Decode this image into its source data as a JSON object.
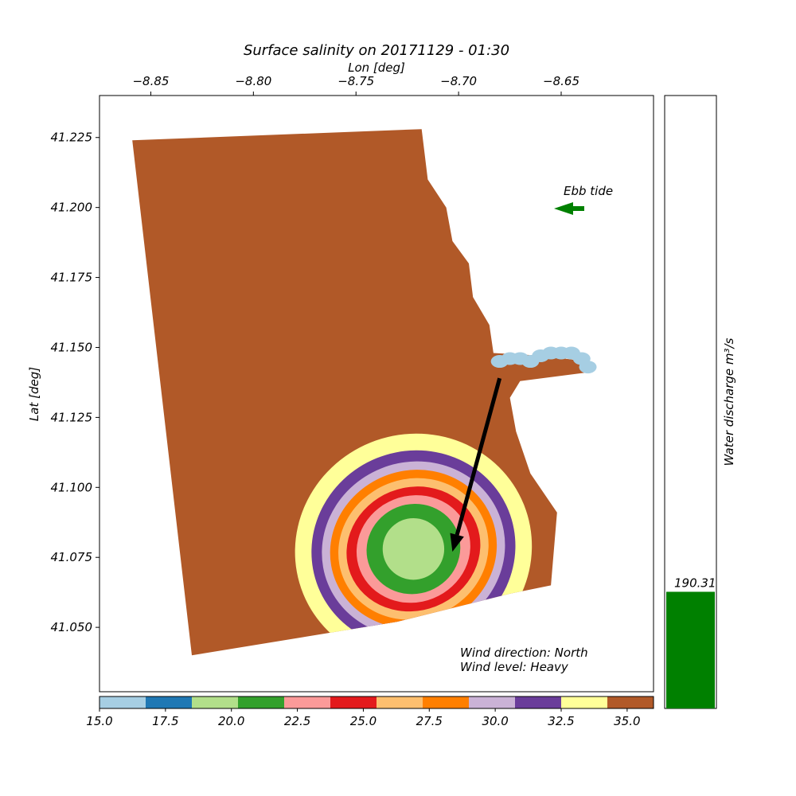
{
  "chart_data": [
    {
      "type": "heatmap",
      "title": "Surface salinity on 20171129 - 01:30",
      "xlabel": "Lon [deg]",
      "ylabel": "Lat [deg]",
      "xlim": [
        -8.875,
        -8.605
      ],
      "ylim": [
        41.027,
        41.24
      ],
      "x_ticks": [
        -8.85,
        -8.8,
        -8.75,
        -8.7,
        -8.65
      ],
      "x_tick_labels": [
        "−8.85",
        "−8.80",
        "−8.75",
        "−8.70",
        "−8.65"
      ],
      "y_ticks": [
        41.05,
        41.075,
        41.1,
        41.125,
        41.15,
        41.175,
        41.2,
        41.225
      ],
      "y_tick_labels": [
        "41.050",
        "41.075",
        "41.100",
        "41.125",
        "41.150",
        "41.175",
        "41.200",
        "41.225"
      ],
      "grid": false,
      "x_axis_position": "top",
      "domain_outline": [
        [
          -8.859,
          41.224
        ],
        [
          -8.718,
          41.228
        ],
        [
          -8.715,
          41.21
        ],
        [
          -8.706,
          41.2
        ],
        [
          -8.703,
          41.188
        ],
        [
          -8.695,
          41.18
        ],
        [
          -8.693,
          41.168
        ],
        [
          -8.685,
          41.158
        ],
        [
          -8.683,
          41.148
        ],
        [
          -8.658,
          41.147
        ],
        [
          -8.638,
          41.145
        ],
        [
          -8.638,
          41.141
        ],
        [
          -8.67,
          41.138
        ],
        [
          -8.675,
          41.132
        ],
        [
          -8.672,
          41.12
        ],
        [
          -8.665,
          41.105
        ],
        [
          -8.652,
          41.091
        ],
        [
          -8.655,
          41.065
        ],
        [
          -8.675,
          41.062
        ],
        [
          -8.73,
          41.052
        ],
        [
          -8.83,
          41.04
        ]
      ],
      "plume_center": [
        -8.722,
        41.078
      ],
      "plume_contours": [
        {
          "value_range": [
            32.5,
            34.25
          ],
          "color": "#ffff99",
          "rx": 0.058,
          "ry": 0.041
        },
        {
          "value_range": [
            30.75,
            32.5
          ],
          "color": "#6a3d9a",
          "rx": 0.05,
          "ry": 0.035
        },
        {
          "value_range": [
            29.0,
            30.75
          ],
          "color": "#cab2d6",
          "rx": 0.045,
          "ry": 0.031
        },
        {
          "value_range": [
            27.25,
            29.0
          ],
          "color": "#ff7f00",
          "rx": 0.041,
          "ry": 0.028
        },
        {
          "value_range": [
            25.5,
            27.25
          ],
          "color": "#fdbf6f",
          "rx": 0.037,
          "ry": 0.025
        },
        {
          "value_range": [
            23.75,
            25.5
          ],
          "color": "#e31a1c",
          "rx": 0.033,
          "ry": 0.022
        },
        {
          "value_range": [
            22.0,
            23.75
          ],
          "color": "#fb9a99",
          "rx": 0.028,
          "ry": 0.019
        },
        {
          "value_range": [
            20.25,
            22.0
          ],
          "color": "#33a02c",
          "rx": 0.023,
          "ry": 0.016
        },
        {
          "value_range": [
            18.5,
            20.25
          ],
          "color": "#b2df8a",
          "rx": 0.015,
          "ry": 0.011
        }
      ],
      "river_points": [
        [
          -8.68,
          41.145
        ],
        [
          -8.675,
          41.146
        ],
        [
          -8.67,
          41.146
        ],
        [
          -8.665,
          41.145
        ],
        [
          -8.66,
          41.147
        ],
        [
          -8.655,
          41.148
        ],
        [
          -8.65,
          41.148
        ],
        [
          -8.645,
          41.148
        ],
        [
          -8.64,
          41.146
        ],
        [
          -8.637,
          41.143
        ]
      ],
      "river_color": "#a6cee3",
      "wind_arrow": {
        "from": [
          -8.68,
          41.139
        ],
        "to": [
          -8.703,
          41.077
        ]
      },
      "annotations": {
        "tide_label": "Ebb tide",
        "wind_direction": "Wind direction: North",
        "wind_level": "Wind level: Heavy"
      },
      "colors": {
        "land_fill": "#b15928",
        "tide_arrow": "#008000",
        "wind_arrow": "#000000"
      }
    },
    {
      "type": "colorbar",
      "orientation": "horizontal",
      "range": [
        15.0,
        36.0
      ],
      "ticks": [
        15.0,
        17.5,
        20.0,
        22.5,
        25.0,
        27.5,
        30.0,
        32.5,
        35.0
      ],
      "tick_labels": [
        "15.0",
        "17.5",
        "20.0",
        "22.5",
        "25.0",
        "27.5",
        "30.0",
        "32.5",
        "35.0"
      ],
      "colors": [
        "#a6cee3",
        "#1f78b4",
        "#b2df8a",
        "#33a02c",
        "#fb9a99",
        "#e31a1c",
        "#fdbf6f",
        "#ff7f00",
        "#cab2d6",
        "#6a3d9a",
        "#ffff99",
        "#b15928"
      ]
    },
    {
      "type": "bar",
      "ylabel": "Water discharge m³/s",
      "ylim": [
        0,
        1000
      ],
      "values": [
        190.31
      ],
      "value_labels": [
        "190.31"
      ],
      "bar_color": "#008000"
    }
  ]
}
